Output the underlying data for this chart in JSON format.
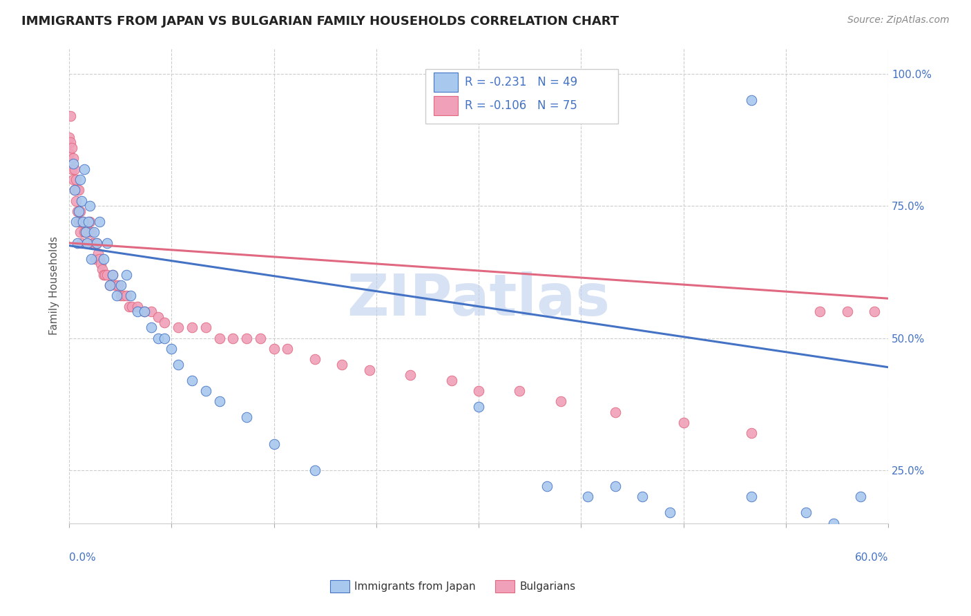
{
  "title": "IMMIGRANTS FROM JAPAN VS BULGARIAN FAMILY HOUSEHOLDS CORRELATION CHART",
  "source": "Source: ZipAtlas.com",
  "ylabel": "Family Households",
  "right_yticks": [
    0.25,
    0.5,
    0.75,
    1.0
  ],
  "right_yticklabels": [
    "25.0%",
    "50.0%",
    "75.0%",
    "100.0%"
  ],
  "xmin": 0.0,
  "xmax": 0.6,
  "ymin": 0.15,
  "ymax": 1.05,
  "legend_r1": "R = -0.231",
  "legend_n1": "N = 49",
  "legend_r2": "R = -0.106",
  "legend_n2": "N = 75",
  "color_blue": "#A8C8EE",
  "color_pink": "#F0A0B8",
  "color_line_blue": "#4472C4",
  "color_line_pink": "#E06880",
  "color_legend_text": "#4472C4",
  "watermark": "ZIPatlas",
  "watermark_color": "#BDD0EE",
  "blue_scatter_x": [
    0.003,
    0.004,
    0.005,
    0.006,
    0.007,
    0.008,
    0.009,
    0.01,
    0.011,
    0.012,
    0.013,
    0.014,
    0.015,
    0.016,
    0.018,
    0.02,
    0.022,
    0.025,
    0.028,
    0.03,
    0.032,
    0.035,
    0.038,
    0.042,
    0.045,
    0.05,
    0.055,
    0.06,
    0.065,
    0.07,
    0.075,
    0.08,
    0.09,
    0.1,
    0.11,
    0.13,
    0.15,
    0.18,
    0.3,
    0.35,
    0.38,
    0.4,
    0.42,
    0.44,
    0.5,
    0.54,
    0.56,
    0.58,
    0.5
  ],
  "blue_scatter_y": [
    0.83,
    0.78,
    0.72,
    0.68,
    0.74,
    0.8,
    0.76,
    0.72,
    0.82,
    0.7,
    0.68,
    0.72,
    0.75,
    0.65,
    0.7,
    0.68,
    0.72,
    0.65,
    0.68,
    0.6,
    0.62,
    0.58,
    0.6,
    0.62,
    0.58,
    0.55,
    0.55,
    0.52,
    0.5,
    0.5,
    0.48,
    0.45,
    0.42,
    0.4,
    0.38,
    0.35,
    0.3,
    0.25,
    0.37,
    0.22,
    0.2,
    0.22,
    0.2,
    0.17,
    0.2,
    0.17,
    0.15,
    0.2,
    0.95
  ],
  "pink_scatter_x": [
    0.0,
    0.0,
    0.001,
    0.001,
    0.002,
    0.002,
    0.003,
    0.003,
    0.004,
    0.004,
    0.005,
    0.005,
    0.006,
    0.006,
    0.007,
    0.007,
    0.008,
    0.008,
    0.009,
    0.009,
    0.01,
    0.011,
    0.012,
    0.013,
    0.014,
    0.015,
    0.016,
    0.017,
    0.018,
    0.019,
    0.02,
    0.021,
    0.022,
    0.023,
    0.024,
    0.025,
    0.026,
    0.028,
    0.03,
    0.032,
    0.034,
    0.036,
    0.038,
    0.04,
    0.042,
    0.044,
    0.046,
    0.05,
    0.055,
    0.06,
    0.065,
    0.07,
    0.08,
    0.09,
    0.1,
    0.11,
    0.12,
    0.13,
    0.14,
    0.15,
    0.16,
    0.18,
    0.2,
    0.22,
    0.25,
    0.28,
    0.3,
    0.33,
    0.36,
    0.4,
    0.45,
    0.5,
    0.55,
    0.57,
    0.59
  ],
  "pink_scatter_y": [
    0.88,
    0.85,
    0.92,
    0.87,
    0.86,
    0.82,
    0.84,
    0.8,
    0.82,
    0.78,
    0.8,
    0.76,
    0.78,
    0.74,
    0.78,
    0.72,
    0.74,
    0.7,
    0.72,
    0.68,
    0.72,
    0.7,
    0.7,
    0.68,
    0.7,
    0.72,
    0.7,
    0.68,
    0.68,
    0.65,
    0.68,
    0.66,
    0.65,
    0.64,
    0.63,
    0.62,
    0.62,
    0.62,
    0.6,
    0.62,
    0.6,
    0.6,
    0.58,
    0.58,
    0.58,
    0.56,
    0.56,
    0.56,
    0.55,
    0.55,
    0.54,
    0.53,
    0.52,
    0.52,
    0.52,
    0.5,
    0.5,
    0.5,
    0.5,
    0.48,
    0.48,
    0.46,
    0.45,
    0.44,
    0.43,
    0.42,
    0.4,
    0.4,
    0.38,
    0.36,
    0.34,
    0.32,
    0.55,
    0.55,
    0.55
  ],
  "blue_trendline_x": [
    0.0,
    0.6
  ],
  "blue_trendline_y": [
    0.675,
    0.445
  ],
  "pink_trendline_x": [
    0.0,
    0.6
  ],
  "pink_trendline_y": [
    0.68,
    0.575
  ]
}
